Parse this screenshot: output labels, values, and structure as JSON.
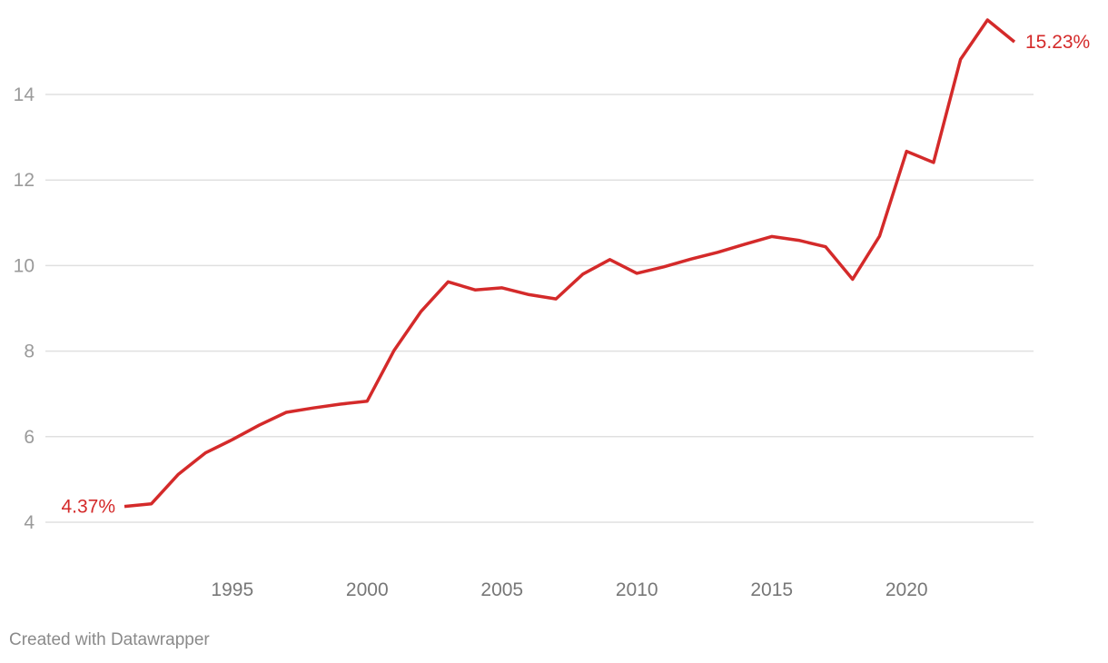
{
  "chart_data": {
    "type": "line",
    "title": "",
    "xlabel": "",
    "ylabel": "",
    "x": [
      1991,
      1992,
      1993,
      1994,
      1995,
      1996,
      1997,
      1998,
      1999,
      2000,
      2001,
      2002,
      2003,
      2004,
      2005,
      2006,
      2007,
      2008,
      2009,
      2010,
      2011,
      2012,
      2013,
      2014,
      2015,
      2016,
      2017,
      2018,
      2019,
      2020,
      2021,
      2022,
      2023,
      2024
    ],
    "series": [
      {
        "values": [
          4.37,
          4.43,
          5.12,
          5.62,
          5.93,
          6.27,
          6.57,
          6.67,
          6.76,
          6.83,
          8.02,
          8.93,
          9.62,
          9.43,
          9.48,
          9.32,
          9.22,
          9.8,
          10.14,
          9.82,
          9.97,
          10.15,
          10.31,
          10.5,
          10.68,
          10.59,
          10.44,
          9.68,
          10.69,
          12.67,
          12.41,
          14.82,
          15.74,
          15.23
        ],
        "color": "#d42a2a"
      }
    ],
    "ylim": [
      4,
      15.6
    ],
    "yticks": [
      4,
      6,
      8,
      10,
      12,
      14
    ],
    "xticks": [
      1995,
      2000,
      2005,
      2010,
      2015,
      2020
    ],
    "grid": true,
    "start_label": "4.37%",
    "end_label": "15.23%",
    "colors": {
      "line": "#d42a2a",
      "grid": "#e0e0e0",
      "ytick": "#9a9a9a",
      "xtick": "#777777"
    }
  },
  "footer": {
    "credit": "Created with Datawrapper"
  }
}
